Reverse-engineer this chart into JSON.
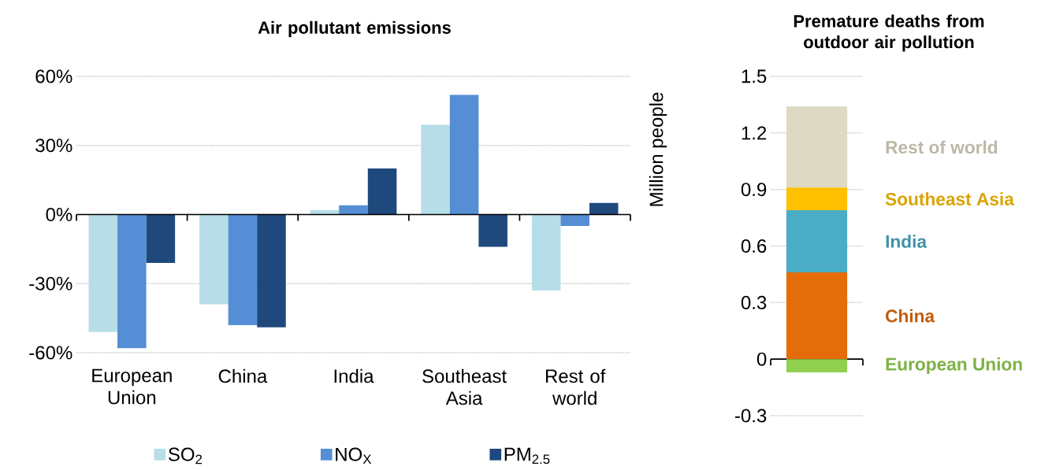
{
  "chart_data": [
    {
      "type": "bar",
      "title": "Air pollutant emissions",
      "categories": [
        "European Union",
        "China",
        "India",
        "Southeast Asia",
        "Rest of world"
      ],
      "series": [
        {
          "name": "SO$_{2}$",
          "color": "#b7dee8",
          "values": [
            -51,
            -39,
            2,
            39,
            -33
          ]
        },
        {
          "name": "NO$_{X}$",
          "color": "#558ed5",
          "values": [
            -58,
            -48,
            4,
            52,
            -5
          ]
        },
        {
          "name": "PM$_{2.5}$",
          "color": "#1f497d",
          "values": [
            -21,
            -49,
            20,
            -14,
            5
          ]
        }
      ],
      "ylim": [
        -60,
        60
      ],
      "yticks": [
        {
          "value": -60,
          "label": "-60%"
        },
        {
          "value": -30,
          "label": "-30%"
        },
        {
          "value": 0,
          "label": "0%"
        },
        {
          "value": 30,
          "label": "30%"
        },
        {
          "value": 60,
          "label": "60%"
        }
      ],
      "grid": "y",
      "legend": "bottom"
    },
    {
      "type": "bar",
      "stacked": true,
      "title": "Premature deaths from outdoor air pollution",
      "ylabel": "Million people",
      "categories": [
        null
      ],
      "series": [
        {
          "name": "European Union",
          "color": "#92d050",
          "values": [
            -0.07
          ]
        },
        {
          "name": "China",
          "color": "#e46c0a",
          "values": [
            0.46
          ]
        },
        {
          "name": "India",
          "color": "#4bacc6",
          "values": [
            0.33
          ]
        },
        {
          "name": "Southeast Asia",
          "color": "#ffc000",
          "values": [
            0.12
          ]
        },
        {
          "name": "Rest of world",
          "color": "#ddd9c3",
          "values": [
            0.43
          ]
        }
      ],
      "ylim": [
        -0.3,
        1.5
      ],
      "yticks": [
        -0.3,
        0,
        0.3,
        0.6,
        0.9,
        1.2,
        1.5
      ],
      "grid": "y"
    }
  ]
}
